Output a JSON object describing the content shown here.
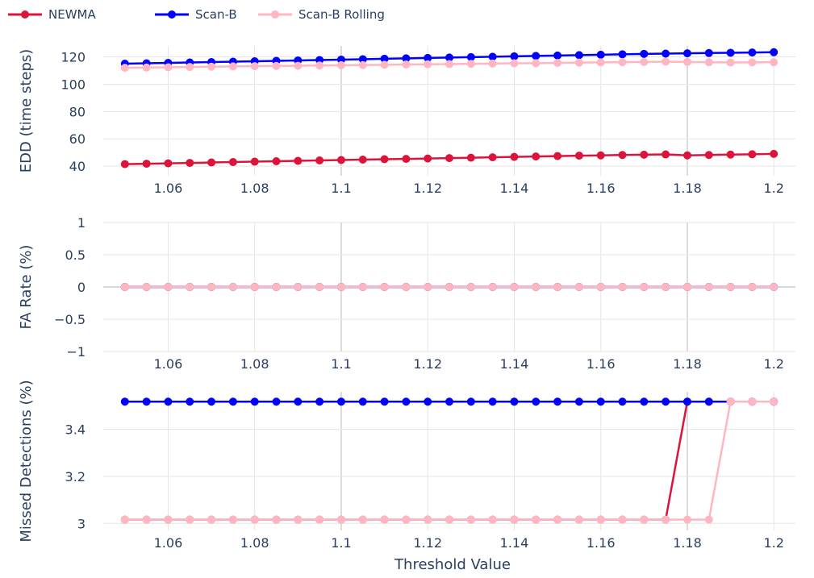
{
  "chart_data": {
    "type": "line",
    "title": "",
    "legend": {
      "placement": "top-left",
      "orientation": "horizontal",
      "entries": [
        "NEWMA",
        "Scan-B",
        "Scan-B Rolling"
      ]
    },
    "colors": {
      "NEWMA": "#dc143c",
      "Scan-B": "#0000ff",
      "Scan-B Rolling": "#ffb6c1",
      "tick_text": "#2a3f5f",
      "grid": "#e5e5e5"
    },
    "xlabel": "Threshold Value",
    "x": [
      1.05,
      1.055,
      1.06,
      1.065,
      1.07,
      1.075,
      1.08,
      1.085,
      1.09,
      1.095,
      1.1,
      1.105,
      1.11,
      1.115,
      1.12,
      1.125,
      1.13,
      1.135,
      1.14,
      1.145,
      1.15,
      1.155,
      1.16,
      1.165,
      1.17,
      1.175,
      1.18,
      1.185,
      1.19,
      1.195,
      1.2
    ],
    "xlim": [
      1.045,
      1.205
    ],
    "x_ticks": [
      1.06,
      1.08,
      1.1,
      1.12,
      1.14,
      1.16,
      1.18,
      1.2
    ],
    "x_tick_labels": [
      "1.06",
      "1.08",
      "1.1",
      "1.12",
      "1.14",
      "1.16",
      "1.18",
      "1.2"
    ],
    "panels": [
      {
        "ylabel": "EDD (time steps)",
        "ylim": [
          33,
          128
        ],
        "y_ticks": [
          40,
          60,
          80,
          100,
          120
        ],
        "y_tick_labels": [
          "40",
          "60",
          "80",
          "100",
          "120"
        ],
        "grid": true,
        "series": [
          {
            "name": "NEWMA",
            "values": [
              41.5,
              41.8,
              42.1,
              42.4,
              42.7,
              43.0,
              43.3,
              43.6,
              43.9,
              44.2,
              44.5,
              44.8,
              45.1,
              45.3,
              45.6,
              45.9,
              46.2,
              46.5,
              46.8,
              47.1,
              47.4,
              47.7,
              47.9,
              48.2,
              48.4,
              48.6,
              47.9,
              48.2,
              48.5,
              48.7,
              49.0
            ]
          },
          {
            "name": "Scan-B",
            "values": [
              115.0,
              115.3,
              115.6,
              115.9,
              116.2,
              116.5,
              116.8,
              117.1,
              117.4,
              117.7,
              118.0,
              118.3,
              118.6,
              118.9,
              119.2,
              119.5,
              119.8,
              120.1,
              120.4,
              120.7,
              121.0,
              121.3,
              121.6,
              121.9,
              122.2,
              122.4,
              122.6,
              122.8,
              123.0,
              123.2,
              123.4
            ]
          },
          {
            "name": "Scan-B Rolling",
            "values": [
              112.0,
              112.2,
              112.4,
              112.6,
              112.8,
              113.0,
              113.2,
              113.4,
              113.5,
              113.7,
              113.9,
              114.0,
              114.2,
              114.4,
              114.6,
              114.7,
              114.9,
              115.1,
              115.3,
              115.4,
              115.6,
              115.8,
              116.0,
              116.1,
              116.3,
              116.5,
              116.3,
              116.1,
              115.9,
              116.0,
              116.1
            ]
          }
        ]
      },
      {
        "ylabel": "FA Rate (%)",
        "ylim": [
          -1,
          1
        ],
        "y_ticks": [
          -1,
          -0.5,
          0,
          0.5,
          1
        ],
        "y_tick_labels": [
          "−1",
          "−0.5",
          "0",
          "0.5",
          "1"
        ],
        "grid": true,
        "series": [
          {
            "name": "NEWMA",
            "values": [
              0,
              0,
              0,
              0,
              0,
              0,
              0,
              0,
              0,
              0,
              0,
              0,
              0,
              0,
              0,
              0,
              0,
              0,
              0,
              0,
              0,
              0,
              0,
              0,
              0,
              0,
              0,
              0,
              0,
              0,
              0
            ]
          },
          {
            "name": "Scan-B",
            "values": [
              0,
              0,
              0,
              0,
              0,
              0,
              0,
              0,
              0,
              0,
              0,
              0,
              0,
              0,
              0,
              0,
              0,
              0,
              0,
              0,
              0,
              0,
              0,
              0,
              0,
              0,
              0,
              0,
              0,
              0,
              0
            ]
          },
          {
            "name": "Scan-B Rolling",
            "values": [
              0,
              0,
              0,
              0,
              0,
              0,
              0,
              0,
              0,
              0,
              0,
              0,
              0,
              0,
              0,
              0,
              0,
              0,
              0,
              0,
              0,
              0,
              0,
              0,
              0,
              0,
              0,
              0,
              0,
              0,
              0
            ]
          }
        ]
      },
      {
        "ylabel": "Missed Detections (%)",
        "ylim": [
          2.97,
          3.56
        ],
        "y_ticks": [
          3,
          3.2,
          3.4
        ],
        "y_tick_labels": [
          "3",
          "3.2",
          "3.4"
        ],
        "grid": true,
        "series": [
          {
            "name": "NEWMA",
            "values": [
              3.016,
              3.016,
              3.016,
              3.016,
              3.016,
              3.016,
              3.016,
              3.016,
              3.016,
              3.016,
              3.016,
              3.016,
              3.016,
              3.016,
              3.016,
              3.016,
              3.016,
              3.016,
              3.016,
              3.016,
              3.016,
              3.016,
              3.016,
              3.016,
              3.016,
              3.016,
              3.518,
              3.518,
              3.518,
              3.518,
              3.518
            ]
          },
          {
            "name": "Scan-B",
            "values": [
              3.518,
              3.518,
              3.518,
              3.518,
              3.518,
              3.518,
              3.518,
              3.518,
              3.518,
              3.518,
              3.518,
              3.518,
              3.518,
              3.518,
              3.518,
              3.518,
              3.518,
              3.518,
              3.518,
              3.518,
              3.518,
              3.518,
              3.518,
              3.518,
              3.518,
              3.518,
              3.518,
              3.518,
              3.518,
              3.518,
              3.518
            ]
          },
          {
            "name": "Scan-B Rolling",
            "values": [
              3.016,
              3.016,
              3.016,
              3.016,
              3.016,
              3.016,
              3.016,
              3.016,
              3.016,
              3.016,
              3.016,
              3.016,
              3.016,
              3.016,
              3.016,
              3.016,
              3.016,
              3.016,
              3.016,
              3.016,
              3.016,
              3.016,
              3.016,
              3.016,
              3.016,
              3.016,
              3.016,
              3.016,
              3.518,
              3.518,
              3.518
            ]
          }
        ]
      }
    ]
  }
}
